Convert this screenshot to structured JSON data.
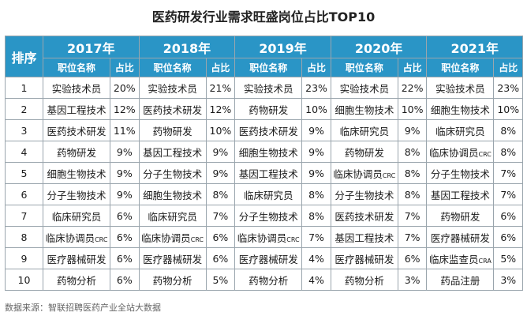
{
  "title": "医药研发行业需求旺盛岗位占比TOP10",
  "header": {
    "rank_label": "排序",
    "position_label": "职位名称",
    "share_label": "占比",
    "years": [
      "2017年",
      "2018年",
      "2019年",
      "2020年",
      "2021年"
    ]
  },
  "rows": [
    {
      "rank": "1",
      "cells": [
        {
          "pos": "实验技术员",
          "pct": "20%"
        },
        {
          "pos": "实验技术员",
          "pct": "21%"
        },
        {
          "pos": "实验技术员",
          "pct": "23%"
        },
        {
          "pos": "实验技术员",
          "pct": "22%"
        },
        {
          "pos": "实验技术员",
          "pct": "23%"
        }
      ]
    },
    {
      "rank": "2",
      "cells": [
        {
          "pos": "基因工程技术",
          "pct": "12%"
        },
        {
          "pos": "医药技术研发",
          "pct": "12%"
        },
        {
          "pos": "药物研发",
          "pct": "10%"
        },
        {
          "pos": "细胞生物技术",
          "pct": "10%"
        },
        {
          "pos": "细胞生物技术",
          "pct": "10%"
        }
      ]
    },
    {
      "rank": "3",
      "cells": [
        {
          "pos": "医药技术研发",
          "pct": "11%"
        },
        {
          "pos": "药物研发",
          "pct": "10%"
        },
        {
          "pos": "医药技术研发",
          "pct": "9%"
        },
        {
          "pos": "临床研究员",
          "pct": "9%"
        },
        {
          "pos": "临床研究员",
          "pct": "8%"
        }
      ]
    },
    {
      "rank": "4",
      "cells": [
        {
          "pos": "药物研发",
          "pct": "9%"
        },
        {
          "pos": "基因工程技术",
          "pct": "9%"
        },
        {
          "pos": "细胞生物技术",
          "pct": "9%"
        },
        {
          "pos": "药物研发",
          "pct": "8%"
        },
        {
          "pos": "临床协调员",
          "sub": "CRC",
          "pct": "8%"
        }
      ]
    },
    {
      "rank": "5",
      "cells": [
        {
          "pos": "细胞生物技术",
          "pct": "9%"
        },
        {
          "pos": "分子生物技术",
          "pct": "9%"
        },
        {
          "pos": "基因工程技术",
          "pct": "9%"
        },
        {
          "pos": "临床协调员",
          "sub": "CRC",
          "pct": "8%"
        },
        {
          "pos": "分子生物技术",
          "pct": "7%"
        }
      ]
    },
    {
      "rank": "6",
      "cells": [
        {
          "pos": "分子生物技术",
          "pct": "9%"
        },
        {
          "pos": "细胞生物技术",
          "pct": "8%"
        },
        {
          "pos": "临床研究员",
          "pct": "8%"
        },
        {
          "pos": "分子生物技术",
          "pct": "8%"
        },
        {
          "pos": "基因工程技术",
          "pct": "7%"
        }
      ]
    },
    {
      "rank": "7",
      "cells": [
        {
          "pos": "临床研究员",
          "pct": "6%"
        },
        {
          "pos": "临床研究员",
          "pct": "7%"
        },
        {
          "pos": "分子生物技术",
          "pct": "8%"
        },
        {
          "pos": "医药技术研发",
          "pct": "7%"
        },
        {
          "pos": "药物研发",
          "pct": "6%"
        }
      ]
    },
    {
      "rank": "8",
      "cells": [
        {
          "pos": "临床协调员",
          "sub": "CRC",
          "pct": "6%"
        },
        {
          "pos": "临床协调员",
          "sub": "CRC",
          "pct": "6%"
        },
        {
          "pos": "临床协调员",
          "sub": "CRC",
          "pct": "7%"
        },
        {
          "pos": "基因工程技术",
          "pct": "7%"
        },
        {
          "pos": "医疗器械研发",
          "pct": "6%"
        }
      ]
    },
    {
      "rank": "9",
      "cells": [
        {
          "pos": "医疗器械研发",
          "pct": "6%"
        },
        {
          "pos": "医疗器械研发",
          "pct": "6%"
        },
        {
          "pos": "医疗器械研发",
          "pct": "4%"
        },
        {
          "pos": "医疗器械研发",
          "pct": "6%"
        },
        {
          "pos": "临床监查员",
          "sub": "CRA",
          "pct": "5%"
        }
      ]
    },
    {
      "rank": "10",
      "cells": [
        {
          "pos": "药物分析",
          "pct": "6%"
        },
        {
          "pos": "药物分析",
          "pct": "5%"
        },
        {
          "pos": "药物分析",
          "pct": "4%"
        },
        {
          "pos": "药物分析",
          "pct": "3%"
        },
        {
          "pos": "药品注册",
          "pct": "3%"
        }
      ]
    }
  ],
  "source": "数据来源：智联招聘医药产业全站大数据",
  "colors": {
    "header_bg": "#2a95c6",
    "header_text": "#ffffff",
    "grid_line": "#9aa5ad"
  }
}
